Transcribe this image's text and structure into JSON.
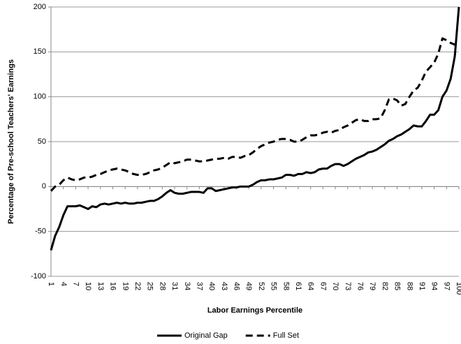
{
  "chart_data": {
    "type": "line",
    "x_label": "Labor Earnings Percentile",
    "y_label": "Percentage of Pre-school Teachers' Earnings",
    "x": [
      1,
      2,
      3,
      4,
      5,
      6,
      7,
      8,
      9,
      10,
      11,
      12,
      13,
      14,
      15,
      16,
      17,
      18,
      19,
      20,
      21,
      22,
      23,
      24,
      25,
      26,
      27,
      28,
      29,
      30,
      31,
      32,
      33,
      34,
      35,
      36,
      37,
      38,
      39,
      40,
      41,
      42,
      43,
      44,
      45,
      46,
      47,
      48,
      49,
      50,
      51,
      52,
      53,
      54,
      55,
      56,
      57,
      58,
      59,
      60,
      61,
      62,
      63,
      64,
      65,
      66,
      67,
      68,
      69,
      70,
      71,
      72,
      73,
      74,
      75,
      76,
      77,
      78,
      79,
      80,
      81,
      82,
      83,
      84,
      85,
      86,
      87,
      88,
      89,
      90,
      91,
      92,
      93,
      94,
      95,
      96,
      97,
      98,
      99,
      100
    ],
    "xlim": [
      1,
      100
    ],
    "xticks": [
      1,
      4,
      7,
      10,
      13,
      16,
      19,
      22,
      25,
      28,
      31,
      34,
      37,
      40,
      43,
      46,
      49,
      52,
      55,
      58,
      61,
      64,
      67,
      70,
      73,
      76,
      79,
      82,
      85,
      88,
      91,
      94,
      97,
      100
    ],
    "ylim": [
      -100,
      200
    ],
    "yticks": [
      -100,
      -50,
      0,
      50,
      100,
      150,
      200
    ],
    "grid": true,
    "legend": "bottom",
    "series": [
      {
        "name": "Original Gap",
        "color": "#000000",
        "dash": false,
        "values": [
          -71,
          -55,
          -45,
          -32,
          -22,
          -22,
          -22,
          -21,
          -23,
          -25,
          -22,
          -23,
          -20,
          -19,
          -20,
          -19,
          -18,
          -19,
          -18,
          -19,
          -19,
          -18,
          -18,
          -17,
          -16,
          -16,
          -14,
          -11,
          -7,
          -4,
          -7,
          -8,
          -8,
          -7,
          -6,
          -6,
          -6,
          -7,
          -2,
          -2,
          -5,
          -4,
          -3,
          -2,
          -1,
          -1,
          0,
          0,
          0,
          2,
          5,
          7,
          7,
          8,
          8,
          9,
          10,
          13,
          13,
          12,
          14,
          14,
          16,
          15,
          16,
          19,
          20,
          20,
          23,
          25,
          25,
          23,
          25,
          28,
          31,
          33,
          35,
          38,
          39,
          41,
          44,
          47,
          51,
          53,
          56,
          58,
          61,
          64,
          68,
          67,
          67,
          73,
          80,
          80,
          85,
          100,
          107,
          120,
          145,
          200
        ]
      },
      {
        "name": "Full Set",
        "color": "#000000",
        "dash": true,
        "values": [
          -5,
          0,
          2,
          7,
          10,
          8,
          7,
          8,
          10,
          10,
          11,
          13,
          14,
          16,
          18,
          19,
          20,
          19,
          18,
          16,
          14,
          13,
          13,
          14,
          16,
          18,
          19,
          21,
          24,
          27,
          26,
          27,
          28,
          30,
          30,
          29,
          28,
          28,
          29,
          30,
          31,
          31,
          32,
          31,
          33,
          33,
          32,
          34,
          35,
          38,
          42,
          45,
          47,
          49,
          50,
          52,
          53,
          53,
          52,
          50,
          50,
          52,
          55,
          57,
          57,
          58,
          60,
          61,
          60,
          62,
          63,
          66,
          68,
          71,
          74,
          75,
          73,
          73,
          75,
          75,
          76,
          85,
          97,
          98,
          96,
          90,
          92,
          100,
          107,
          110,
          118,
          128,
          133,
          138,
          148,
          165,
          163,
          160,
          158,
          160
        ]
      }
    ]
  }
}
